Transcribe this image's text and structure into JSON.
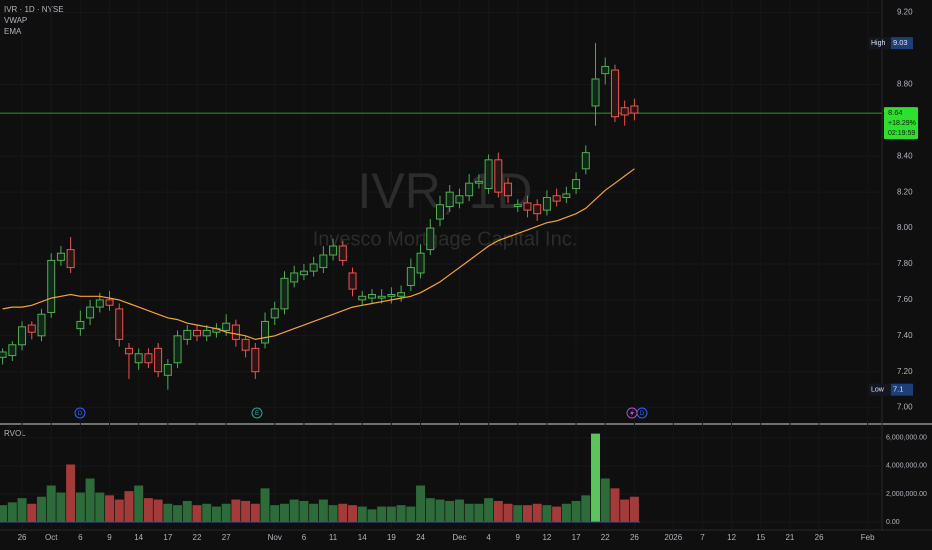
{
  "chart_data": [
    {
      "type": "candlestick",
      "title": "IVR · 1D · NYSE",
      "indicators": [
        "VWAP",
        "EMA"
      ],
      "watermark": "IVR, 1D",
      "watermark_subtitle": "Invesco Mortgage Capital Inc.",
      "categories": [
        null,
        null,
        "26",
        null,
        null,
        "Oct",
        null,
        null,
        "6",
        null,
        null,
        "9",
        null,
        null,
        "14",
        null,
        null,
        "17",
        null,
        null,
        "22",
        null,
        null,
        "27",
        null,
        null,
        null,
        null,
        "Nov",
        null,
        null,
        "6",
        null,
        null,
        "11",
        null,
        null,
        "14",
        null,
        null,
        "19",
        null,
        null,
        "24",
        null,
        null,
        null,
        "Dec",
        null,
        null,
        "4",
        null,
        null,
        "9",
        null,
        null,
        "12",
        null,
        null,
        "17",
        null,
        null,
        "22",
        null,
        null,
        "26",
        null,
        null,
        null,
        "2026",
        null,
        null,
        "7",
        null,
        null,
        "12",
        null,
        null,
        "15",
        null,
        null,
        "21",
        null,
        null,
        "26",
        null,
        null,
        null,
        null,
        "Feb"
      ],
      "open": [
        7.28,
        7.29,
        7.35,
        7.46,
        7.4,
        7.53,
        7.82,
        7.88,
        7.44,
        7.5,
        7.56,
        7.6,
        7.55,
        7.33,
        7.25,
        7.3,
        7.33,
        7.18,
        7.25,
        7.38,
        7.43,
        7.4,
        7.42,
        7.43,
        7.46,
        7.38,
        7.33,
        7.36,
        7.5,
        7.55,
        7.7,
        7.74,
        7.76,
        7.78,
        7.85,
        7.9,
        7.75,
        7.6,
        7.61,
        7.61,
        7.62,
        7.62,
        7.68,
        7.75,
        7.88,
        8.05,
        8.12,
        8.14,
        8.18,
        8.25,
        8.22,
        8.38,
        8.25,
        8.12,
        8.14,
        8.13,
        8.1,
        8.18,
        8.17,
        8.22,
        8.33,
        8.68,
        8.86,
        8.88,
        8.67,
        8.68,
        null,
        null,
        null,
        null,
        null,
        null,
        null,
        null,
        null,
        null,
        null,
        null,
        null,
        null,
        null,
        null,
        null,
        null,
        null,
        null,
        null,
        null,
        null,
        null
      ],
      "high": [
        7.33,
        7.37,
        7.48,
        7.48,
        7.55,
        7.86,
        7.9,
        7.95,
        7.54,
        7.6,
        7.64,
        7.65,
        7.58,
        7.36,
        7.33,
        7.33,
        7.36,
        7.27,
        7.43,
        7.46,
        7.46,
        7.46,
        7.47,
        7.52,
        7.49,
        7.4,
        7.36,
        7.53,
        7.59,
        7.76,
        7.79,
        7.8,
        7.84,
        7.9,
        7.94,
        7.93,
        7.78,
        7.65,
        7.66,
        7.66,
        7.67,
        7.68,
        7.83,
        7.91,
        8.05,
        8.18,
        8.24,
        8.22,
        8.3,
        8.3,
        8.41,
        8.42,
        8.28,
        8.16,
        8.18,
        8.16,
        8.21,
        8.22,
        8.23,
        8.31,
        8.46,
        9.03,
        8.95,
        8.91,
        8.71,
        8.72,
        null,
        null,
        null,
        null,
        null,
        null,
        null,
        null,
        null,
        null,
        null,
        null,
        null,
        null,
        null,
        null,
        null,
        null,
        null,
        null,
        null,
        null,
        null,
        null
      ],
      "low": [
        7.24,
        7.26,
        7.32,
        7.38,
        7.37,
        7.5,
        7.79,
        7.75,
        7.4,
        7.46,
        7.53,
        7.54,
        7.34,
        7.16,
        7.21,
        7.22,
        7.17,
        7.1,
        7.22,
        7.35,
        7.37,
        7.37,
        7.39,
        7.4,
        7.34,
        7.28,
        7.16,
        7.33,
        7.46,
        7.52,
        7.67,
        7.71,
        7.73,
        7.75,
        7.82,
        7.79,
        7.62,
        7.57,
        7.58,
        7.58,
        7.58,
        7.59,
        7.65,
        7.72,
        7.85,
        8.01,
        8.09,
        8.11,
        8.15,
        8.22,
        8.19,
        8.17,
        8.14,
        8.09,
        8.06,
        8.04,
        8.07,
        8.12,
        8.14,
        8.19,
        8.3,
        8.57,
        8.8,
        8.59,
        8.57,
        8.6,
        null,
        null,
        null,
        null,
        null,
        null,
        null,
        null,
        null,
        null,
        null,
        null,
        null,
        null,
        null,
        null,
        null,
        null,
        null,
        null,
        null,
        null,
        null,
        null
      ],
      "close": [
        7.31,
        7.35,
        7.45,
        7.42,
        7.52,
        7.82,
        7.86,
        7.78,
        7.48,
        7.56,
        7.6,
        7.57,
        7.38,
        7.3,
        7.3,
        7.25,
        7.2,
        7.24,
        7.4,
        7.43,
        7.4,
        7.43,
        7.44,
        7.47,
        7.38,
        7.32,
        7.2,
        7.48,
        7.55,
        7.72,
        7.75,
        7.76,
        7.8,
        7.85,
        7.9,
        7.82,
        7.66,
        7.62,
        7.63,
        7.62,
        7.63,
        7.64,
        7.78,
        7.86,
        8.0,
        8.13,
        8.2,
        8.18,
        8.25,
        8.26,
        8.38,
        8.2,
        8.18,
        8.13,
        8.1,
        8.08,
        8.17,
        8.15,
        8.19,
        8.27,
        8.42,
        8.83,
        8.9,
        8.62,
        8.63,
        8.64,
        null,
        null,
        null,
        null,
        null,
        null,
        null,
        null,
        null,
        null,
        null,
        null,
        null,
        null,
        null,
        null,
        null,
        null,
        null,
        null,
        null,
        null,
        null,
        null
      ],
      "ema": [
        7.55,
        7.56,
        7.56,
        7.57,
        7.59,
        7.61,
        7.62,
        7.63,
        7.62,
        7.62,
        7.62,
        7.61,
        7.6,
        7.58,
        7.56,
        7.54,
        7.52,
        7.5,
        7.49,
        7.47,
        7.46,
        7.45,
        7.44,
        7.42,
        7.41,
        7.4,
        7.38,
        7.39,
        7.4,
        7.42,
        7.44,
        7.46,
        7.48,
        7.5,
        7.52,
        7.54,
        7.56,
        7.57,
        7.58,
        7.59,
        7.6,
        7.61,
        7.62,
        7.64,
        7.67,
        7.7,
        7.74,
        7.78,
        7.82,
        7.86,
        7.9,
        7.93,
        7.95,
        7.97,
        7.99,
        8.01,
        8.03,
        8.04,
        8.06,
        8.08,
        8.11,
        8.16,
        8.21,
        8.25,
        8.29,
        8.33,
        null,
        null,
        null,
        null,
        null,
        null,
        null,
        null,
        null,
        null,
        null,
        null,
        null,
        null,
        null,
        null,
        null,
        null,
        null,
        null,
        null,
        null,
        null,
        null
      ],
      "up_color": "#4caf50",
      "down_color": "#ef5350",
      "ema_color": "#f5a623",
      "ylim": [
        6.92,
        9.27
      ],
      "yticks": [
        {
          "value": 9.2,
          "label": "9.20"
        },
        {
          "value": 8.8,
          "label": "8.80"
        },
        {
          "value": 8.4,
          "label": "8.40"
        },
        {
          "value": 8.2,
          "label": "8.20"
        },
        {
          "value": 8.0,
          "label": "8.00"
        },
        {
          "value": 7.8,
          "label": "7.80"
        },
        {
          "value": 7.6,
          "label": "7.60"
        },
        {
          "value": 7.4,
          "label": "7.40"
        },
        {
          "value": 7.2,
          "label": "7.20"
        },
        {
          "value": 7.0,
          "label": "7.00"
        }
      ],
      "high_badge": {
        "label": "High",
        "value": 9.03
      },
      "low_badge": {
        "label": "Low",
        "value": 7.1
      },
      "last_price": {
        "value": 8.64,
        "change": {
          "value": 18.29,
          "label": "+18.29%"
        },
        "countdown": "02:19:59"
      },
      "events": [
        "D",
        "E",
        "D"
      ]
    },
    {
      "type": "volume",
      "title": "RVOL",
      "values": [
        1200000,
        1400000,
        1700000,
        1300000,
        1800000,
        2600000,
        2100000,
        4100000,
        2100000,
        3100000,
        2100000,
        1900000,
        1600000,
        2200000,
        2600000,
        1700000,
        1600000,
        1300000,
        1200000,
        1500000,
        1200000,
        1300000,
        1100000,
        1300000,
        1600000,
        1500000,
        1300000,
        2400000,
        1200000,
        1300000,
        1600000,
        1500000,
        1300000,
        1600000,
        1200000,
        1300000,
        1200000,
        1100000,
        900000,
        1100000,
        1100000,
        1200000,
        1100000,
        2600000,
        1700000,
        1600000,
        1500000,
        1600000,
        1300000,
        1300000,
        1700000,
        1500000,
        1300000,
        1200000,
        1200000,
        1300000,
        1200000,
        1100000,
        1300000,
        1500000,
        1900000,
        6300000,
        3100000,
        2400000,
        1600000,
        1800000,
        null,
        null,
        null,
        null,
        null,
        null,
        null,
        null,
        null,
        null,
        null,
        null,
        null,
        null,
        null,
        null,
        null,
        null,
        null,
        null,
        null,
        null,
        null,
        null
      ],
      "up_color": "#2e6b3a",
      "down_color": "#a33b3b",
      "ylim": [
        0,
        6700000
      ],
      "yticks": [
        {
          "value": 6000000,
          "label": "6,000,000.00"
        },
        {
          "value": 4000000,
          "label": "4,000,000.00"
        },
        {
          "value": 2000000,
          "label": "2,000,000.00"
        },
        {
          "value": 0,
          "label": "0.00"
        }
      ]
    }
  ]
}
